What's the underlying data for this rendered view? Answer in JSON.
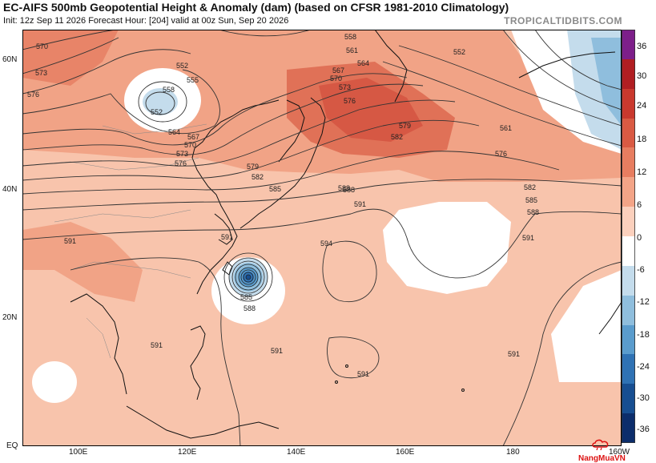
{
  "header": {
    "title": "EC-AIFS 500mb Geopotential Height & Anomaly (dam) (based on CFSR 1981-2010 Climatology)",
    "subtitle": "Init: 12z Sep 11 2026   Forecast Hour: [204]   valid at 00z Sun, Sep 20 2026",
    "brand": "TROPICALTIDBITS.COM"
  },
  "axes": {
    "lon_labels": [
      "100E",
      "120E",
      "140E",
      "160E",
      "180",
      "160W"
    ],
    "lat_labels": [
      "60N",
      "40N",
      "20N",
      "EQ"
    ]
  },
  "contour_labels": [
    "570",
    "573",
    "576",
    "552",
    "555",
    "558",
    "552",
    "564",
    "567",
    "570",
    "573",
    "576",
    "558",
    "561",
    "564",
    "567",
    "570",
    "573",
    "576",
    "579",
    "582",
    "552",
    "579",
    "582",
    "585",
    "588",
    "591",
    "591",
    "594",
    "591",
    "585",
    "588",
    "591",
    "591",
    "591",
    "591",
    "582",
    "585",
    "588",
    "591",
    "561",
    "576",
    "588"
  ],
  "colorbar": {
    "labels": [
      "36",
      "30",
      "24",
      "18",
      "12",
      "6",
      "0",
      "-6",
      "-12",
      "-18",
      "-24",
      "-30",
      "-36"
    ],
    "colors": [
      "#7d1f8a",
      "#b01e22",
      "#c9392e",
      "#d95a43",
      "#e77d60",
      "#f3a487",
      "#fbd0bd",
      "#ffffff",
      "#c4dcec",
      "#8fbedd",
      "#5a9ccd",
      "#2f72b4",
      "#174e91",
      "#0c2d6b"
    ]
  },
  "watermark": {
    "text": "NangMuaVN"
  }
}
